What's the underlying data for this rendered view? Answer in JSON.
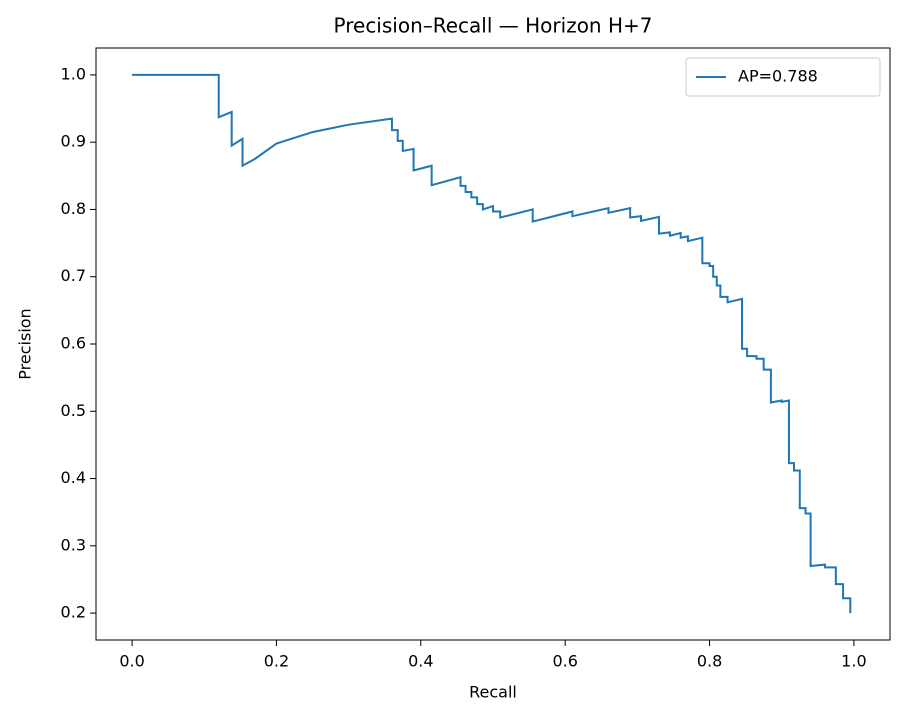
{
  "chart_data": {
    "type": "line",
    "title": "Precision–Recall — Horizon H+7",
    "xlabel": "Recall",
    "ylabel": "Precision",
    "xlim": [
      -0.05,
      1.05
    ],
    "ylim": [
      0.16,
      1.04
    ],
    "xticks": [
      {
        "value": 0,
        "label": "0.0"
      },
      0.2,
      0.4,
      0.6,
      0.8,
      {
        "value": 1,
        "label": "1.0"
      }
    ],
    "yticks": [
      0.2,
      0.3,
      0.4,
      0.5,
      0.6,
      0.7,
      0.8,
      0.9,
      {
        "value": 1,
        "label": "1.0"
      }
    ],
    "grid": false,
    "legend": "upper right",
    "series": [
      {
        "name": "AP=0.788",
        "color": "#1f77b4",
        "x": [
          0,
          0.12,
          0.12,
          0.138,
          0.138,
          0.153,
          0.153,
          0.17,
          0.2,
          0.25,
          0.3,
          0.36,
          0.36,
          0.368,
          0.368,
          0.375,
          0.375,
          0.39,
          0.39,
          0.415,
          0.415,
          0.455,
          0.455,
          0.462,
          0.462,
          0.47,
          0.47,
          0.478,
          0.478,
          0.486,
          0.486,
          0.5,
          0.5,
          0.51,
          0.51,
          0.555,
          0.555,
          0.61,
          0.61,
          0.66,
          0.66,
          0.69,
          0.69,
          0.705,
          0.705,
          0.73,
          0.73,
          0.745,
          0.745,
          0.76,
          0.76,
          0.77,
          0.77,
          0.79,
          0.79,
          0.8,
          0.8,
          0.805,
          0.805,
          0.81,
          0.81,
          0.815,
          0.815,
          0.825,
          0.825,
          0.845,
          0.845,
          0.852,
          0.852,
          0.865,
          0.865,
          0.875,
          0.875,
          0.885,
          0.885,
          0.9,
          0.9,
          0.91,
          0.91,
          0.917,
          0.917,
          0.925,
          0.925,
          0.933,
          0.933,
          0.94,
          0.94,
          0.96,
          0.96,
          0.975,
          0.975,
          0.985,
          0.985,
          0.995,
          0.995
        ],
        "values": [
          1,
          1,
          0.937,
          0.945,
          0.895,
          0.905,
          0.865,
          0.875,
          0.898,
          0.915,
          0.926,
          0.935,
          0.918,
          0.918,
          0.902,
          0.902,
          0.887,
          0.89,
          0.858,
          0.865,
          0.836,
          0.848,
          0.835,
          0.835,
          0.826,
          0.826,
          0.818,
          0.818,
          0.808,
          0.808,
          0.8,
          0.805,
          0.797,
          0.797,
          0.788,
          0.8,
          0.782,
          0.797,
          0.79,
          0.802,
          0.795,
          0.802,
          0.788,
          0.79,
          0.783,
          0.789,
          0.764,
          0.766,
          0.761,
          0.765,
          0.758,
          0.76,
          0.753,
          0.758,
          0.72,
          0.72,
          0.716,
          0.716,
          0.7,
          0.7,
          0.687,
          0.687,
          0.67,
          0.67,
          0.662,
          0.667,
          0.593,
          0.593,
          0.582,
          0.582,
          0.578,
          0.578,
          0.562,
          0.562,
          0.513,
          0.516,
          0.514,
          0.516,
          0.423,
          0.423,
          0.412,
          0.412,
          0.356,
          0.356,
          0.348,
          0.348,
          0.27,
          0.272,
          0.268,
          0.268,
          0.243,
          0.243,
          0.222,
          0.222,
          0.2
        ]
      }
    ]
  }
}
